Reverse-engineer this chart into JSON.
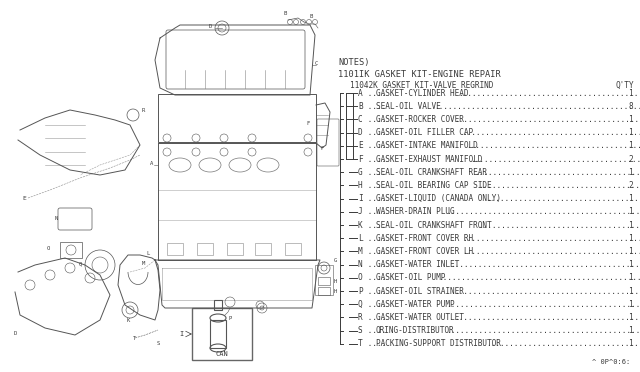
{
  "bg_color": "#ffffff",
  "notes_header": "NOTES)",
  "kit_line1": "1101IK GASKET KIT-ENGINE REPAIR",
  "kit_line2": "11042K GASKET KIT-VALVE REGRIND",
  "qty_label": "Q'TY",
  "parts": [
    {
      "letter": "A",
      "desc": "GASKET-CYLINDER HEAD",
      "qty": "1",
      "group": "inner"
    },
    {
      "letter": "B",
      "desc": "SEAL-OIL VALVE",
      "qty": "8",
      "group": "inner"
    },
    {
      "letter": "C",
      "desc": "GASKET-ROCKER COVER",
      "qty": "1",
      "group": "inner"
    },
    {
      "letter": "D",
      "desc": "GASKET-OIL FILLER CAP",
      "qty": "1",
      "group": "inner"
    },
    {
      "letter": "E",
      "desc": "GASKET-INTAKE MANIFOLD",
      "qty": "1",
      "group": "inner"
    },
    {
      "letter": "F",
      "desc": "GASKET-EXHAUST MANIFOLD",
      "qty": "2",
      "group": "inner"
    },
    {
      "letter": "G",
      "desc": "SEAL-OIL CRANKSHAFT REAR",
      "qty": "1",
      "group": "outer"
    },
    {
      "letter": "H",
      "desc": "SEAL-OIL BEARING CAP SIDE",
      "qty": "2",
      "group": "outer"
    },
    {
      "letter": "I",
      "desc": "GASKET-LIQUID (CANADA ONLY)",
      "qty": "1",
      "group": "outer"
    },
    {
      "letter": "J",
      "desc": "WASHER-DRAIN PLUG",
      "qty": "1",
      "group": "outer"
    },
    {
      "letter": "K",
      "desc": "SEAL-OIL CRANKSHAFT FRONT",
      "qty": "1",
      "group": "outer"
    },
    {
      "letter": "L",
      "desc": "GASKET-FRONT COVER RH",
      "qty": "1",
      "group": "outer"
    },
    {
      "letter": "M",
      "desc": "GASKET-FRONT COVER LH",
      "qty": "1",
      "group": "outer"
    },
    {
      "letter": "N",
      "desc": "GASKET-WATER INLET",
      "qty": "1",
      "group": "outer"
    },
    {
      "letter": "O",
      "desc": "GASKET-OIL PUMP",
      "qty": "1",
      "group": "outer"
    },
    {
      "letter": "P",
      "desc": "GASKET-OIL STRAINER",
      "qty": "1",
      "group": "outer"
    },
    {
      "letter": "Q",
      "desc": "GASKET-WATER PUMP",
      "qty": "1",
      "group": "outer"
    },
    {
      "letter": "R",
      "desc": "GASKET-WATER OUTLET",
      "qty": "1",
      "group": "outer"
    },
    {
      "letter": "S",
      "desc": "ORING-DISTRIBUTOR",
      "qty": "1",
      "group": "outer"
    },
    {
      "letter": "T",
      "desc": "PACKING-SUPPORT DISTRIBUTOR",
      "qty": "1",
      "group": "outer"
    }
  ],
  "footnote": "^ 0P^0:6:",
  "text_color": "#3a3a3a",
  "engine_color": "#555555",
  "can_label": "CAN"
}
